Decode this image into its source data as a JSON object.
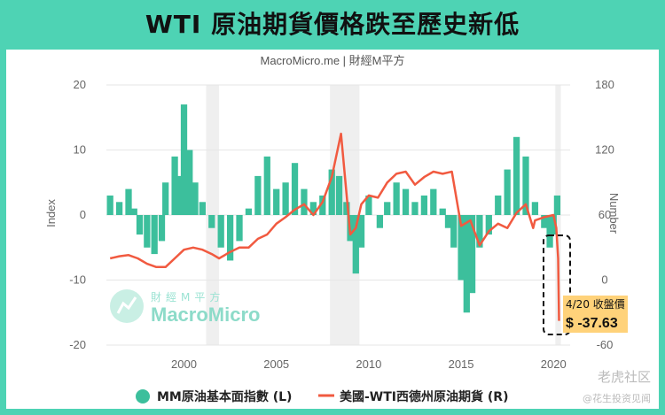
{
  "title": "WTI 原油期貨價格跌至歷史新低",
  "chart_data": {
    "type": "bar+line",
    "subtitle": "MacroMicro.me | 財經M平方",
    "ylabel_left": "Index",
    "ylabel_right": "Number",
    "ylim_left": [
      -20,
      20
    ],
    "ylim_right": [
      -60,
      180
    ],
    "yticks_left": [
      "20",
      "10",
      "0",
      "-10",
      "-20"
    ],
    "yticks_right": [
      "180",
      "120",
      "60",
      "0",
      "-60"
    ],
    "xlim": [
      1995.8,
      2020.9
    ],
    "xticks": [
      "2000",
      "2005",
      "2010",
      "2015",
      "2020"
    ],
    "shaded_ranges": [
      [
        2001.2,
        2001.9
      ],
      [
        2007.9,
        2009.5
      ],
      [
        2020.1,
        2020.4
      ]
    ],
    "series": [
      {
        "name": "MM原油基本面指數 (L)",
        "type": "bar",
        "axis": "left",
        "color": "#3cbf9c",
        "x": [
          1996.0,
          1996.5,
          1997.0,
          1997.3,
          1997.6,
          1998.0,
          1998.4,
          1998.8,
          1999.0,
          1999.5,
          1999.8,
          2000.0,
          2000.3,
          2000.6,
          2001.0,
          2001.5,
          2002.0,
          2002.5,
          2003.0,
          2003.5,
          2004.0,
          2004.5,
          2005.0,
          2005.5,
          2006.0,
          2006.5,
          2007.0,
          2007.5,
          2008.0,
          2008.4,
          2008.8,
          2009.0,
          2009.3,
          2009.6,
          2010.0,
          2010.3,
          2010.6,
          2011.0,
          2011.5,
          2012.0,
          2012.5,
          2013.0,
          2013.5,
          2014.0,
          2014.3,
          2014.6,
          2015.0,
          2015.3,
          2015.6,
          2016.0,
          2016.5,
          2017.0,
          2017.5,
          2018.0,
          2018.5,
          2019.0,
          2019.5,
          2019.8,
          2020.0,
          2020.2
        ],
        "y": [
          3,
          2,
          4,
          1,
          -3,
          -5,
          -6,
          -4,
          5,
          9,
          6,
          17,
          10,
          5,
          2,
          -2,
          -5,
          -7,
          -4,
          1,
          6,
          9,
          4,
          5,
          8,
          4,
          2,
          3,
          7,
          6,
          2,
          -4,
          -9,
          -5,
          3,
          0,
          -2,
          2,
          5,
          4,
          2,
          3,
          4,
          1,
          -2,
          -5,
          -10,
          -15,
          -12,
          -5,
          -3,
          3,
          7,
          12,
          9,
          2,
          -2,
          -5,
          -3,
          3
        ]
      },
      {
        "name": "美國-WTI西德州原油期貨 (R)",
        "type": "line",
        "axis": "right",
        "color": "#f15a40",
        "x": [
          1996.0,
          1996.5,
          1997.0,
          1997.5,
          1998.0,
          1998.5,
          1999.0,
          1999.5,
          2000.0,
          2000.5,
          2001.0,
          2001.5,
          2001.9,
          2002.5,
          2003.0,
          2003.5,
          2004.0,
          2004.5,
          2005.0,
          2005.5,
          2006.0,
          2006.5,
          2007.0,
          2007.5,
          2008.0,
          2008.5,
          2008.9,
          2009.0,
          2009.3,
          2009.6,
          2010.0,
          2010.5,
          2011.0,
          2011.5,
          2012.0,
          2012.5,
          2013.0,
          2013.5,
          2014.0,
          2014.5,
          2015.0,
          2015.5,
          2016.0,
          2016.5,
          2017.0,
          2017.5,
          2018.0,
          2018.5,
          2018.9,
          2019.0,
          2019.5,
          2020.0,
          2020.15,
          2020.25,
          2020.3
        ],
        "y": [
          20,
          22,
          23,
          20,
          15,
          12,
          12,
          20,
          28,
          30,
          28,
          24,
          20,
          26,
          30,
          30,
          38,
          42,
          52,
          58,
          65,
          70,
          60,
          72,
          95,
          135,
          60,
          42,
          48,
          70,
          78,
          76,
          90,
          98,
          100,
          88,
          95,
          100,
          98,
          100,
          50,
          55,
          32,
          45,
          52,
          48,
          62,
          70,
          48,
          55,
          58,
          60,
          48,
          20,
          -37.63
        ]
      }
    ],
    "annotation": {
      "date": "4/20 收盤價",
      "value": "$ -37.63"
    },
    "logo": {
      "cn": "財經M平方",
      "en": "MacroMicro"
    },
    "watermark": {
      "line1": "老虎社区",
      "line2": "@花生投资见闻"
    }
  }
}
